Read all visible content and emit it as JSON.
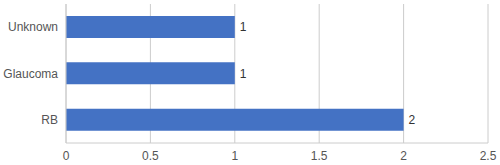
{
  "chart_data": {
    "type": "bar",
    "orientation": "horizontal",
    "categories": [
      "Unknown",
      "Glaucoma",
      "RB"
    ],
    "values": [
      1,
      1,
      2
    ],
    "color": "#4472c4",
    "xlim": [
      0,
      2.5
    ],
    "xticks": [
      0,
      0.5,
      1,
      1.5,
      2,
      2.5
    ],
    "grid": true,
    "data_labels": true
  }
}
